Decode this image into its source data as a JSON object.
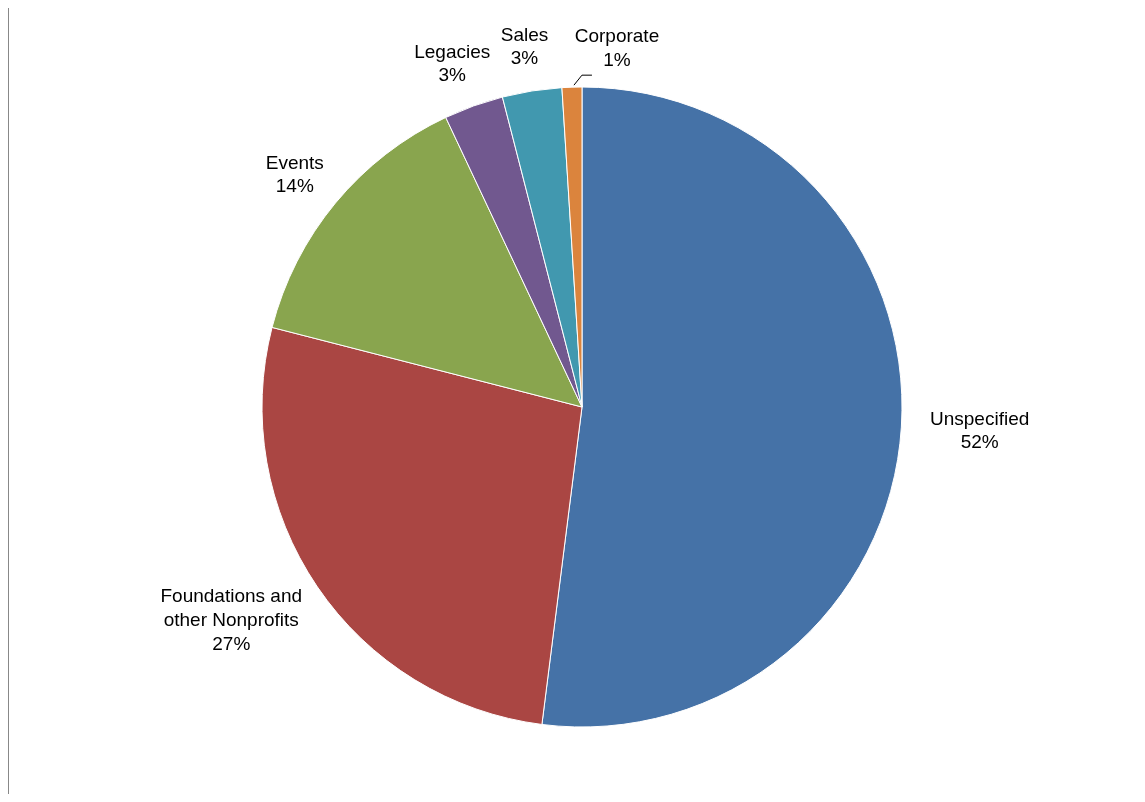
{
  "chart_data": {
    "type": "pie",
    "categories": [
      "Unspecified",
      "Foundations and other Nonprofits",
      "Events",
      "Legacies",
      "Sales",
      "Corporate"
    ],
    "values": [
      52,
      27,
      14,
      3,
      3,
      1
    ],
    "colors": [
      "#4572a7",
      "#aa4643",
      "#89a54e",
      "#71588f",
      "#4198af",
      "#db843d"
    ],
    "value_labels": [
      "52%",
      "27%",
      "14%",
      "3%",
      "3%",
      "1%"
    ],
    "legend": false
  }
}
